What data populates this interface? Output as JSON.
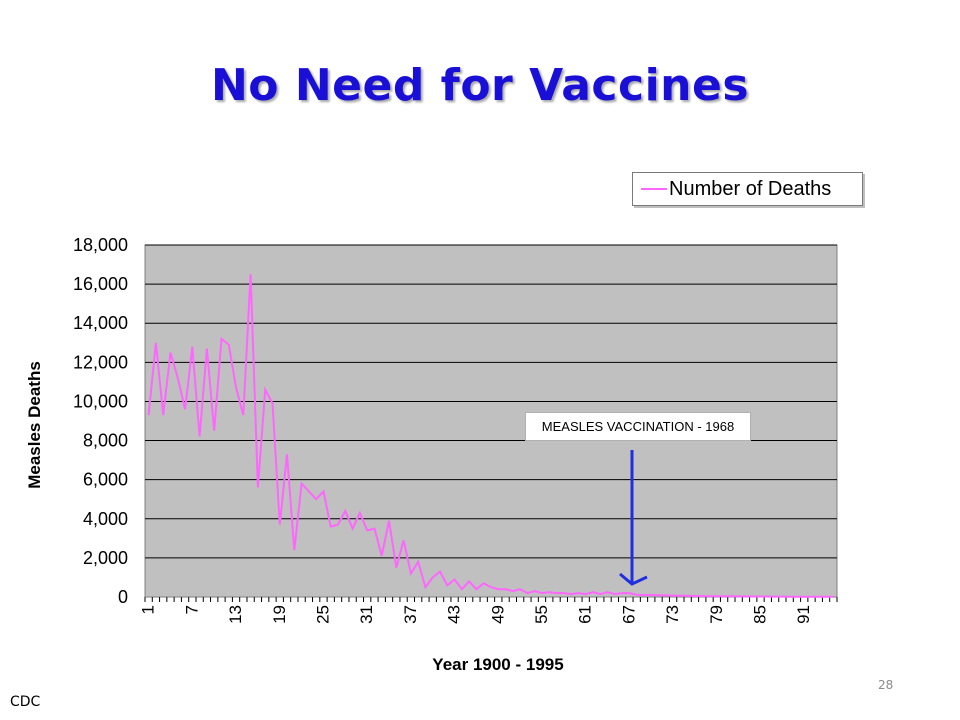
{
  "slide": {
    "title": "No Need for Vaccines",
    "source": "CDC",
    "page_number": "28"
  },
  "colors": {
    "title": "#1a0fd6",
    "series": "#ff66ff",
    "plot_background": "#c0c0c0",
    "arrow": "#1f2fe0"
  },
  "chart_data": {
    "type": "line",
    "title": "",
    "xlabel": "Year 1900 - 1995",
    "ylabel": "Measles Deaths",
    "ylim": [
      0,
      18000
    ],
    "yticks": [
      0,
      2000,
      4000,
      6000,
      8000,
      10000,
      12000,
      14000,
      16000,
      18000
    ],
    "ytick_labels": [
      "0",
      "2,000",
      "4,000",
      "6,000",
      "8,000",
      "10,000",
      "12,000",
      "14,000",
      "16,000",
      "18,000"
    ],
    "xtick_labels": [
      "1",
      "7",
      "13",
      "19",
      "25",
      "31",
      "37",
      "43",
      "49",
      "55",
      "61",
      "67",
      "73",
      "79",
      "85",
      "91"
    ],
    "grid": true,
    "legend_position": "top-right",
    "series": [
      {
        "name": "Number of Deaths",
        "values": [
          9300,
          13000,
          9300,
          12500,
          11200,
          9600,
          12800,
          8200,
          12700,
          8500,
          13200,
          12900,
          10700,
          9300,
          16500,
          5600,
          10600,
          9900,
          3700,
          7300,
          2400,
          5800,
          5400,
          5000,
          5400,
          3600,
          3700,
          4400,
          3500,
          4300,
          3400,
          3500,
          2100,
          3900,
          1500,
          2900,
          1200,
          1800,
          500,
          1000,
          1300,
          600,
          900,
          400,
          800,
          400,
          700,
          500,
          400,
          400,
          300,
          400,
          200,
          300,
          200,
          250,
          200,
          200,
          150,
          200,
          150,
          250,
          150,
          250,
          150,
          200,
          200,
          120,
          100,
          100,
          90,
          80,
          70,
          60,
          55,
          50,
          45,
          40,
          40,
          35,
          35,
          30,
          30,
          25,
          25,
          25,
          20,
          20,
          15,
          15,
          15,
          10,
          10,
          10,
          10
        ]
      }
    ],
    "annotations": [
      {
        "text": "MEASLES VACCINATION - 1968",
        "x": 68
      }
    ]
  }
}
